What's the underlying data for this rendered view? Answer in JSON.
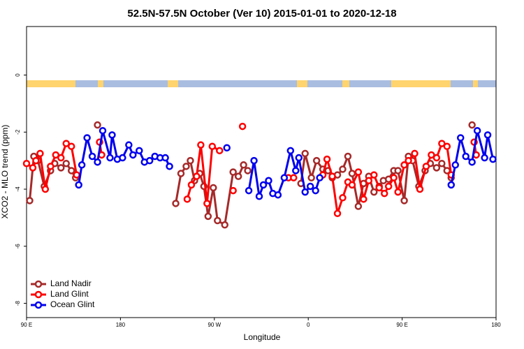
{
  "chart_data": {
    "type": "line",
    "title": "52.5N-57.5N October (Ver 10)   2015-01-01 to 2020-12-18",
    "x_label": "Longitude",
    "y_label": "XCO2 - MLO trend (ppm)",
    "xlim": [
      90,
      540
    ],
    "ylim": [
      -8.5,
      1.7
    ],
    "xticks": [
      {
        "value": 90,
        "label": "90 E"
      },
      {
        "value": 180,
        "label": "180"
      },
      {
        "value": 270,
        "label": "90 W"
      },
      {
        "value": 360,
        "label": "0"
      },
      {
        "value": 450,
        "label": "90 E"
      },
      {
        "value": 540,
        "label": "180"
      }
    ],
    "yticks": [
      0,
      -2,
      -4,
      -6,
      -8
    ],
    "legend": "bottom-left",
    "series": [
      {
        "name": "Land Nadir",
        "color": "#a52a2a",
        "x": [
          93,
          97,
          101,
          107,
          113,
          117,
          123,
          128,
          133,
          137,
          null,
          158,
          null,
          233,
          238,
          243,
          247,
          251,
          256,
          260,
          264,
          269,
          273,
          280,
          288,
          293,
          298,
          302,
          null,
          353,
          357,
          363,
          368,
          374,
          379,
          383,
          388,
          393,
          398,
          402,
          408,
          413,
          418,
          423,
          428,
          432,
          437,
          442,
          446,
          452,
          456,
          460,
          466,
          472,
          477,
          483,
          488,
          493,
          497,
          null,
          517
        ],
        "values": [
          -4.4,
          -2.85,
          -3.0,
          -3.9,
          -3.35,
          -3.1,
          -3.25,
          -3.1,
          -3.35,
          -3.6,
          null,
          -1.75,
          null,
          -4.5,
          -3.45,
          -3.2,
          -3.0,
          -3.7,
          -3.45,
          -3.9,
          -4.95,
          -3.95,
          -5.1,
          -5.25,
          -3.4,
          -3.55,
          -3.15,
          -3.35,
          null,
          -3.8,
          -2.75,
          -3.6,
          -3.0,
          -3.3,
          -3.35,
          -3.6,
          -3.5,
          -3.3,
          -2.85,
          -3.45,
          -4.6,
          -3.8,
          -3.55,
          -4.1,
          -3.9,
          -3.7,
          -3.65,
          -3.35,
          -3.35,
          -4.4,
          -2.85,
          -3.0,
          -3.9,
          -3.35,
          -3.1,
          -3.25,
          -3.1,
          -3.35,
          -3.6,
          null,
          -1.75
        ]
      },
      {
        "name": "Land Glint",
        "color": "#ff0000",
        "x": [
          90,
          96,
          99,
          103,
          108,
          113,
          118,
          123,
          128,
          133,
          138,
          null,
          160,
          162,
          null,
          244,
          248,
          253,
          257,
          263,
          268,
          275,
          null,
          288,
          null,
          297,
          null,
          341,
          346,
          null,
          374,
          378,
          383,
          388,
          393,
          398,
          402,
          408,
          413,
          418,
          423,
          428,
          433,
          437,
          442,
          446,
          452,
          456,
          462,
          467,
          473,
          478,
          483,
          488,
          493,
          497,
          null,
          519,
          521
        ],
        "values": [
          -3.1,
          -3.25,
          -3.0,
          -2.75,
          -4.0,
          -3.2,
          -2.8,
          -2.9,
          -2.4,
          -2.5,
          -3.5,
          null,
          -2.35,
          -2.8,
          null,
          -4.35,
          -3.85,
          -3.55,
          -2.45,
          -4.5,
          -2.5,
          -2.65,
          null,
          -4.05,
          null,
          -1.8,
          null,
          -3.6,
          -3.6,
          null,
          -3.5,
          -2.95,
          -3.55,
          -4.85,
          -4.3,
          -3.75,
          -3.85,
          -3.4,
          -4.35,
          -3.7,
          -3.5,
          -3.95,
          -4.15,
          -3.9,
          -3.6,
          -4.1,
          -3.15,
          -3.0,
          -2.75,
          -4.0,
          -3.2,
          -2.8,
          -2.9,
          -2.4,
          -2.5,
          -3.5,
          null,
          -2.35,
          -2.8
        ]
      },
      {
        "name": "Ocean Glint",
        "color": "#0000ee",
        "x": [
          140,
          143,
          148,
          153,
          158,
          163,
          170,
          172,
          177,
          182,
          188,
          192,
          198,
          203,
          208,
          213,
          218,
          223,
          227,
          null,
          282,
          null,
          303,
          308,
          313,
          317,
          322,
          326,
          331,
          337,
          343,
          348,
          351,
          357,
          362,
          367,
          371,
          null,
          497,
          501,
          506,
          511,
          517,
          522,
          529,
          532,
          537
        ],
        "values": [
          -3.85,
          -3.15,
          -2.2,
          -2.85,
          -3.05,
          -1.95,
          -2.9,
          -2.1,
          -2.95,
          -2.9,
          -2.45,
          -2.8,
          -2.65,
          -3.05,
          -3.0,
          -2.85,
          -2.9,
          -2.9,
          -3.2,
          null,
          -2.55,
          null,
          -4.05,
          -3.0,
          -4.25,
          -3.85,
          -3.7,
          -4.15,
          -4.2,
          -3.6,
          -2.65,
          -3.35,
          -2.9,
          -4.1,
          -3.9,
          -4.05,
          -3.6,
          null,
          -3.85,
          -3.15,
          -2.2,
          -2.85,
          -3.05,
          -1.95,
          -2.9,
          -2.1,
          -2.95
        ]
      }
    ]
  }
}
